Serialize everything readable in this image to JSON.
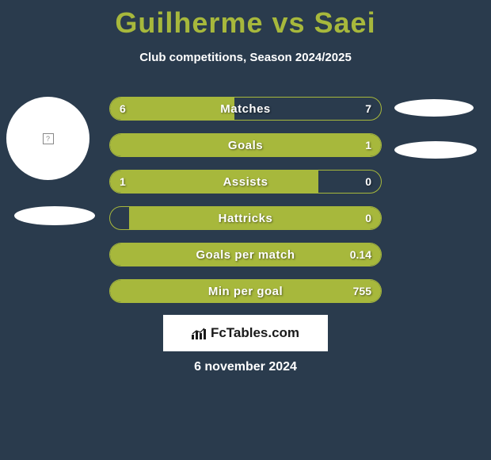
{
  "title": "Guilherme vs Saei",
  "subtitle": "Club competitions, Season 2024/2025",
  "accent_color": "#a7b83c",
  "background_color": "#2a3b4d",
  "stats": [
    {
      "label": "Matches",
      "left_val": "6",
      "right_val": "7",
      "left_pct": 46,
      "right_pct": 0
    },
    {
      "label": "Goals",
      "left_val": "",
      "right_val": "1",
      "left_pct": 100,
      "right_pct": 0
    },
    {
      "label": "Assists",
      "left_val": "1",
      "right_val": "0",
      "left_pct": 77,
      "right_pct": 0
    },
    {
      "label": "Hattricks",
      "left_val": "",
      "right_val": "0",
      "left_pct": 0,
      "right_pct": 93
    },
    {
      "label": "Goals per match",
      "left_val": "",
      "right_val": "0.14",
      "left_pct": 100,
      "right_pct": 0
    },
    {
      "label": "Min per goal",
      "left_val": "",
      "right_val": "755",
      "left_pct": 100,
      "right_pct": 0
    }
  ],
  "brand": "FcTables.com",
  "date": "6 november 2024"
}
